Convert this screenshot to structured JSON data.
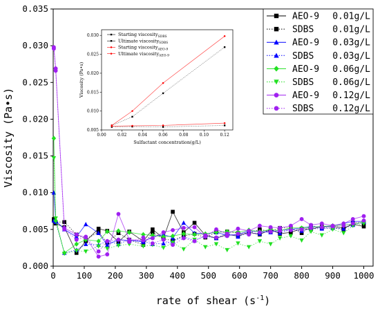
{
  "chart_data": [
    {
      "type": "line",
      "title": "",
      "xlabel": "rate of shear (s",
      "xlabel_sup": "-1",
      "xlabel_close": ")",
      "ylabel": "Viscosity (Pa•s)",
      "xlim": [
        0,
        1030
      ],
      "ylim": [
        0,
        0.035
      ],
      "xticks": [
        0,
        100,
        200,
        300,
        400,
        500,
        600,
        700,
        800,
        900,
        1000
      ],
      "yticks": [
        "0.000",
        "0.005",
        "0.010",
        "0.015",
        "0.020",
        "0.025",
        "0.030",
        "0.035"
      ],
      "legend_position": "top-right",
      "x": [
        2,
        8,
        36,
        75,
        105,
        146,
        174,
        210,
        245,
        290,
        320,
        355,
        385,
        420,
        455,
        490,
        525,
        560,
        595,
        630,
        665,
        700,
        730,
        765,
        800,
        830,
        865,
        900,
        935,
        965,
        1000
      ],
      "series": [
        {
          "name_main": "AEO-9",
          "name_conc": "0.01g/L",
          "color": "#000000",
          "marker": "square",
          "dash": "solid",
          "values": [
            0.0062,
            0.0058,
            0.0053,
            0.0018,
            0.0034,
            0.0051,
            0.0048,
            0.0033,
            0.0047,
            0.0034,
            0.005,
            0.0038,
            0.0074,
            0.0046,
            0.0059,
            0.0042,
            0.0038,
            0.0043,
            0.0041,
            0.0046,
            0.0043,
            0.005,
            0.0044,
            0.0046,
            0.0051,
            0.005,
            0.0054,
            0.0054,
            0.0052,
            0.0057,
            0.0054
          ]
        },
        {
          "name_main": "SDBS",
          "name_conc": "0.01g/L",
          "color": "#000000",
          "marker": "square",
          "dash": "dot",
          "values": [
            0.0064,
            0.006,
            0.006,
            0.0043,
            0.0037,
            0.0046,
            0.0032,
            0.0045,
            0.0036,
            0.0029,
            0.0046,
            0.0037,
            0.0035,
            0.0041,
            0.0044,
            0.0039,
            0.0046,
            0.0047,
            0.0045,
            0.0045,
            0.005,
            0.0047,
            0.0052,
            0.0052,
            0.0045,
            0.0055,
            0.0052,
            0.0052,
            0.005,
            0.0059,
            0.0059
          ]
        },
        {
          "name_main": "AEO-9",
          "name_conc": "0.03g/L",
          "color": "#0000ff",
          "marker": "triangle",
          "dash": "solid",
          "values": [
            0.01,
            0.0062,
            0.005,
            0.004,
            0.0057,
            0.0045,
            0.0029,
            0.0036,
            0.0035,
            0.0033,
            0.004,
            0.0043,
            0.0039,
            0.0059,
            0.0045,
            0.0044,
            0.0046,
            0.0042,
            0.0043,
            0.0048,
            0.0047,
            0.0046,
            0.0049,
            0.005,
            0.0052,
            0.0054,
            0.0053,
            0.0055,
            0.0058,
            0.0061,
            0.0061
          ]
        },
        {
          "name_main": "SDBS",
          "name_conc": "0.03g/L",
          "color": "#0000ff",
          "marker": "triangle",
          "dash": "dot",
          "values": [
            0.0062,
            0.006,
            0.0018,
            0.0022,
            0.003,
            0.0029,
            0.0034,
            0.003,
            0.0036,
            0.0034,
            0.003,
            0.0031,
            0.0034,
            0.004,
            0.0035,
            0.0041,
            0.0038,
            0.0045,
            0.004,
            0.0046,
            0.0044,
            0.005,
            0.0045,
            0.005,
            0.0048,
            0.0051,
            0.0051,
            0.0052,
            0.0051,
            0.0056,
            0.006
          ]
        },
        {
          "name_main": "AEO-9",
          "name_conc": "0.06g/L",
          "color": "#22e022",
          "marker": "diamond",
          "dash": "solid",
          "values": [
            0.0174,
            0.0062,
            0.0018,
            0.003,
            0.0036,
            0.0034,
            0.0047,
            0.0048,
            0.0046,
            0.0043,
            0.0042,
            0.004,
            0.0041,
            0.0044,
            0.0043,
            0.0044,
            0.0046,
            0.0047,
            0.0046,
            0.0049,
            0.0047,
            0.005,
            0.0048,
            0.0052,
            0.0052,
            0.0053,
            0.0054,
            0.0055,
            0.0056,
            0.0057,
            0.006
          ]
        },
        {
          "name_main": "SDBS",
          "name_conc": "0.06g/L",
          "color": "#22e022",
          "marker": "triangle-down",
          "dash": "dot",
          "values": [
            0.0147,
            0.0065,
            0.0017,
            0.0021,
            0.002,
            0.0027,
            0.0024,
            0.0028,
            0.003,
            0.0027,
            0.0029,
            0.0025,
            0.0032,
            0.0023,
            0.0036,
            0.0026,
            0.003,
            0.0022,
            0.0031,
            0.0026,
            0.0034,
            0.003,
            0.0038,
            0.0041,
            0.0035,
            0.0047,
            0.0042,
            0.005,
            0.0045,
            0.0055,
            0.0058
          ]
        },
        {
          "name_main": "AEO-9",
          "name_conc": "0.12g/L",
          "color": "#a020f0",
          "marker": "circle",
          "dash": "solid",
          "values": [
            0.0298,
            0.0269,
            0.0052,
            0.0043,
            0.0039,
            0.0013,
            0.0016,
            0.0071,
            0.0036,
            0.0035,
            0.0038,
            0.0046,
            0.0049,
            0.0052,
            0.0053,
            0.004,
            0.005,
            0.0044,
            0.0051,
            0.0048,
            0.0055,
            0.0053,
            0.0052,
            0.0055,
            0.0064,
            0.0056,
            0.0058,
            0.0055,
            0.0058,
            0.0064,
            0.0068
          ]
        },
        {
          "name_main": "SDBS",
          "name_conc": "0.12g/L",
          "color": "#a020f0",
          "marker": "circle",
          "dash": "dot",
          "values": [
            0.0296,
            0.0266,
            0.005,
            0.0036,
            0.004,
            0.002,
            0.0034,
            0.0036,
            0.0033,
            0.0039,
            0.0031,
            0.0036,
            0.0029,
            0.0038,
            0.0034,
            0.0042,
            0.0039,
            0.0041,
            0.0044,
            0.0043,
            0.0046,
            0.0047,
            0.0048,
            0.0049,
            0.005,
            0.0052,
            0.0053,
            0.0054,
            0.0055,
            0.0058,
            0.0062
          ]
        }
      ]
    },
    {
      "type": "line",
      "title": "",
      "xlabel": "Sulfactant concentration(g/L)",
      "ylabel": "Viscosity (Pa•s)",
      "xlim": [
        0,
        0.128
      ],
      "ylim": [
        0.005,
        0.0315
      ],
      "xticks": [
        "0.00",
        "0.02",
        "0.04",
        "0.06",
        "0.08",
        "0.10",
        "0.12"
      ],
      "yticks": [
        "0.005",
        "0.010",
        "0.015",
        "0.020",
        "0.025",
        "0.030"
      ],
      "legend_position": "top-left",
      "x": [
        0.01,
        0.03,
        0.06,
        0.12
      ],
      "series": [
        {
          "label": "Starting viscosity",
          "sub": "SDBS",
          "color": "#000000",
          "marker": "square",
          "values": [
            0.0062,
            0.0085,
            0.0147,
            0.0269
          ]
        },
        {
          "label": "Ultimate viscosity",
          "sub": "SDBS",
          "color": "#000000",
          "marker": "square",
          "values": [
            0.0058,
            0.0059,
            0.0058,
            0.0062
          ]
        },
        {
          "label": "Starting viscosity",
          "sub": "AEO-9",
          "color": "#ff0000",
          "marker": "circle",
          "values": [
            0.0062,
            0.01,
            0.0174,
            0.0298
          ]
        },
        {
          "label": "Ultimate viscosity",
          "sub": "AEO-9",
          "color": "#ff0000",
          "marker": "circle",
          "values": [
            0.006,
            0.0061,
            0.0062,
            0.0068
          ]
        }
      ]
    }
  ]
}
